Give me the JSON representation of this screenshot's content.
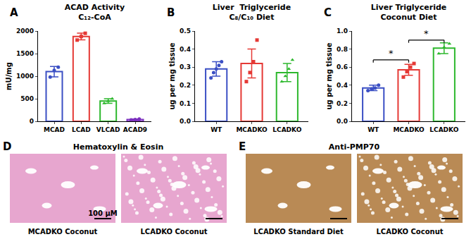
{
  "chart_data": [
    {
      "panel_label": "A",
      "type": "bar",
      "title": "ACAD Activity",
      "subtitle": "C₁₂-CoA",
      "y_label": "mU/mg",
      "categories": [
        "MCAD",
        "LCAD",
        "VLCAD",
        "ACAD9"
      ],
      "values": [
        1100,
        1880,
        450,
        40
      ],
      "errors": [
        115,
        75,
        50,
        10
      ],
      "points": [
        [
          980,
          1130,
          1200
        ],
        [
          1800,
          1880,
          1950
        ],
        [
          400,
          450,
          500
        ],
        [
          30,
          40,
          50
        ]
      ],
      "colors": [
        "#3b4fc4",
        "#e53935",
        "#2db82d",
        "#7b2fbe"
      ],
      "ylim": [
        0,
        2000
      ],
      "yticks": [
        0,
        500,
        1000,
        1500,
        2000
      ],
      "grid": false
    },
    {
      "panel_label": "B",
      "type": "bar",
      "title": "Liver  Triglyceride",
      "subtitle": "C₈/C₁₀ Diet",
      "y_label": "ug per mg tissue",
      "categories": [
        "WT",
        "MCADKO",
        "LCADKO"
      ],
      "values": [
        0.29,
        0.32,
        0.27
      ],
      "errors": [
        0.04,
        0.08,
        0.05
      ],
      "points": [
        [
          0.24,
          0.27,
          0.29,
          0.31,
          0.33
        ],
        [
          0.22,
          0.27,
          0.33,
          0.45
        ],
        [
          0.22,
          0.25,
          0.29,
          0.34
        ]
      ],
      "colors": [
        "#3b4fc4",
        "#e53935",
        "#2db82d"
      ],
      "ylim": [
        0,
        0.5
      ],
      "yticks": [
        {
          "value": 0,
          "label": "0.0"
        },
        {
          "value": 0.1,
          "label": "0.1"
        },
        {
          "value": 0.2,
          "label": "0.2"
        },
        {
          "value": 0.3,
          "label": "0.3"
        },
        {
          "value": 0.4,
          "label": "0.4"
        },
        {
          "value": 0.5,
          "label": "0.5"
        }
      ],
      "grid": false
    },
    {
      "panel_label": "C",
      "type": "bar",
      "title": "Liver Triglyceride",
      "subtitle": "Coconut Diet",
      "y_label": "ug per mg tissue",
      "categories": [
        "WT",
        "MCADKO",
        "LCADKO"
      ],
      "values": [
        0.37,
        0.57,
        0.81
      ],
      "errors": [
        0.03,
        0.06,
        0.06
      ],
      "points": [
        [
          0.34,
          0.36,
          0.37,
          0.4
        ],
        [
          0.49,
          0.55,
          0.6,
          0.64
        ],
        [
          0.75,
          0.82,
          0.86
        ]
      ],
      "colors": [
        "#3b4fc4",
        "#e53935",
        "#2db82d"
      ],
      "ylim": [
        0,
        1.0
      ],
      "yticks": [
        {
          "value": 0,
          "label": "0.0"
        },
        {
          "value": 0.2,
          "label": "0.2"
        },
        {
          "value": 0.4,
          "label": "0.4"
        },
        {
          "value": 0.6,
          "label": "0.6"
        },
        {
          "value": 0.8,
          "label": "0.8"
        },
        {
          "value": 1.0,
          "label": "1.0"
        }
      ],
      "significance": [
        {
          "from": "WT",
          "to": "MCADKO",
          "y": 0.68,
          "label": "*"
        },
        {
          "from": "MCADKO",
          "to": "LCADKO",
          "y": 0.9,
          "label": "*"
        }
      ],
      "grid": false
    }
  ],
  "image_panels": [
    {
      "panel_label": "D",
      "title": "Hematoxylin & Eosin",
      "color": "#e7a6cf",
      "images": [
        {
          "label": "MCADKO Coconut",
          "scale_bar": "100 μM"
        },
        {
          "label": "LCADKO Coconut"
        }
      ]
    },
    {
      "panel_label": "E",
      "title": "Anti-PMP70",
      "color": "#b98a55",
      "images": [
        {
          "label": "LCADKO Standard Diet"
        },
        {
          "label": "LCADKO Coconut"
        }
      ]
    }
  ]
}
